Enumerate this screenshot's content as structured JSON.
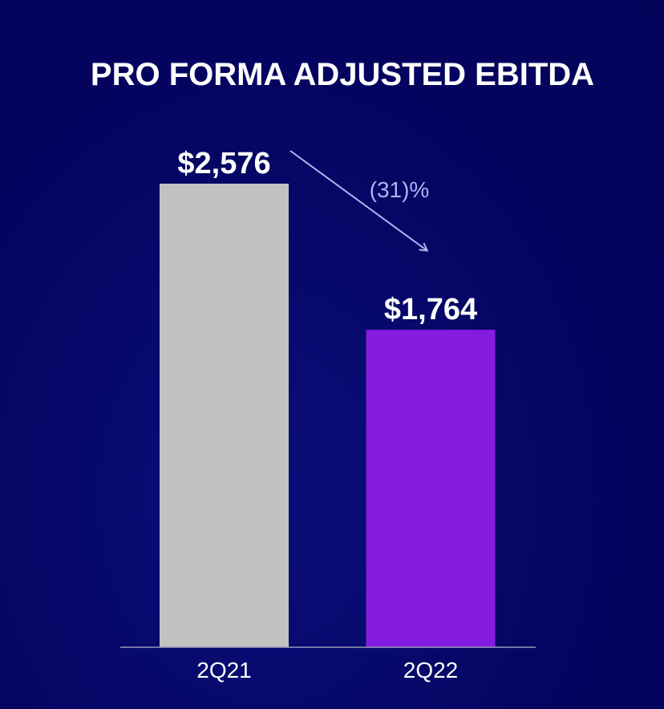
{
  "chart_data": {
    "type": "bar",
    "title": "PRO FORMA ADJUSTED EBITDA",
    "categories": [
      "2Q21",
      "2Q22"
    ],
    "values": [
      2576,
      1764
    ],
    "value_labels": [
      "$2,576",
      "$1,764"
    ],
    "bar_colors": [
      "#c2c2c2",
      "#841ce0"
    ],
    "change_label": "(31)%",
    "change_color": "#a9b6f2",
    "ylim": [
      0,
      2576
    ],
    "grid": false,
    "legend": "none"
  }
}
